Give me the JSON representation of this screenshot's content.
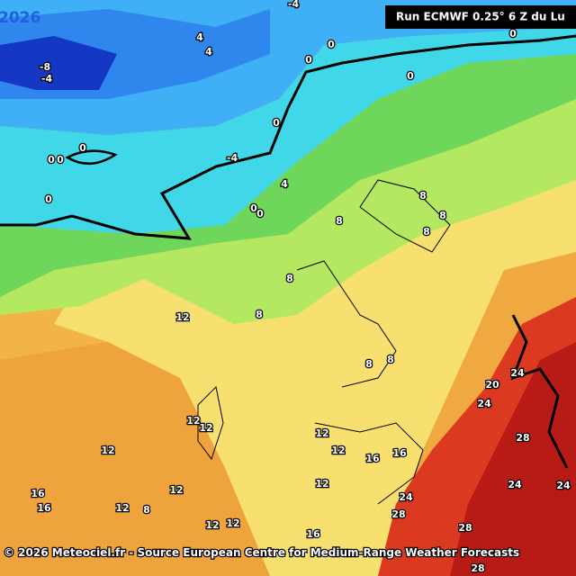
{
  "header": {
    "run": "Run ECMWF 0.25° 6 Z du Lu",
    "year": "2026"
  },
  "footer": "© 2026 Meteociel.fr - Source European Centre for Medium-Range Weather Forecasts",
  "labels": [
    "-4",
    "4",
    "4",
    "-8",
    "-4",
    "0",
    "0",
    "0",
    "0",
    "0",
    "0",
    "0",
    "0",
    "-4",
    "4",
    "0",
    "0",
    "0",
    "8",
    "8",
    "8",
    "8",
    "8",
    "8",
    "12",
    "8",
    "8",
    "24",
    "20",
    "24",
    "12",
    "12",
    "12",
    "12",
    "12",
    "16",
    "16",
    "28",
    "12",
    "12",
    "24",
    "24",
    "16",
    "16",
    "12",
    "8",
    "24",
    "28",
    "12",
    "12",
    "16",
    "28",
    "28"
  ]
}
